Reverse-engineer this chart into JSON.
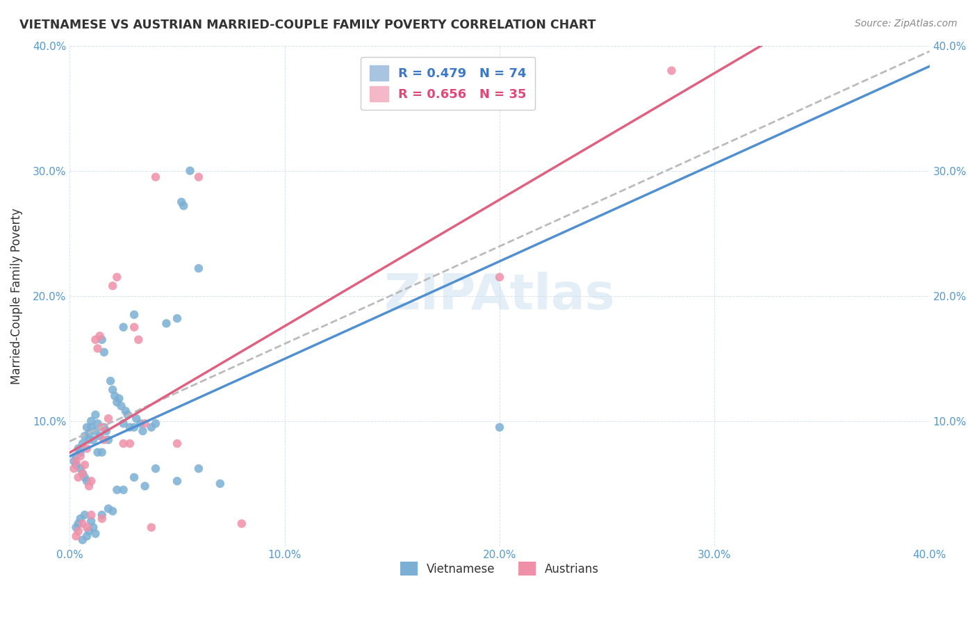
{
  "title": "VIETNAMESE VS AUSTRIAN MARRIED-COUPLE FAMILY POVERTY CORRELATION CHART",
  "source": "Source: ZipAtlas.com",
  "xlabel": "",
  "ylabel": "Married-Couple Family Poverty",
  "xlim": [
    0.0,
    0.4
  ],
  "ylim": [
    0.0,
    0.4
  ],
  "xtick_labels": [
    "0.0%",
    "10.0%",
    "20.0%",
    "30.0%",
    "40.0%"
  ],
  "ytick_labels": [
    "",
    "10.0%",
    "20.0%",
    "30.0%",
    "40.0%"
  ],
  "watermark": "ZIPAtlas",
  "legend_items": [
    {
      "label": "R = 0.479   N = 74",
      "color": "#a8c4e0",
      "text_color": "#3c78c8"
    },
    {
      "label": "R = 0.656   N = 35",
      "color": "#f4b8c8",
      "text_color": "#e04878"
    }
  ],
  "legend_labels": [
    "Vietnamese",
    "Austrians"
  ],
  "vietnamese_color": "#7bafd4",
  "austrian_color": "#f090a8",
  "trendline_viet_color": "#5090d0",
  "trendline_aust_color": "#e06080",
  "trendline_viet_dash_color": "#cccccc",
  "R_viet": 0.479,
  "N_viet": 74,
  "R_aust": 0.656,
  "N_aust": 35,
  "vietnamese_points": [
    [
      0.002,
      0.068
    ],
    [
      0.003,
      0.072
    ],
    [
      0.003,
      0.065
    ],
    [
      0.004,
      0.078
    ],
    [
      0.005,
      0.062
    ],
    [
      0.005,
      0.075
    ],
    [
      0.006,
      0.058
    ],
    [
      0.006,
      0.082
    ],
    [
      0.007,
      0.055
    ],
    [
      0.007,
      0.088
    ],
    [
      0.008,
      0.052
    ],
    [
      0.008,
      0.095
    ],
    [
      0.009,
      0.09
    ],
    [
      0.009,
      0.085
    ],
    [
      0.01,
      0.1
    ],
    [
      0.01,
      0.095
    ],
    [
      0.011,
      0.085
    ],
    [
      0.012,
      0.092
    ],
    [
      0.012,
      0.105
    ],
    [
      0.013,
      0.098
    ],
    [
      0.013,
      0.075
    ],
    [
      0.014,
      0.088
    ],
    [
      0.015,
      0.165
    ],
    [
      0.015,
      0.075
    ],
    [
      0.016,
      0.155
    ],
    [
      0.016,
      0.095
    ],
    [
      0.017,
      0.092
    ],
    [
      0.018,
      0.085
    ],
    [
      0.019,
      0.132
    ],
    [
      0.02,
      0.125
    ],
    [
      0.021,
      0.12
    ],
    [
      0.022,
      0.115
    ],
    [
      0.023,
      0.118
    ],
    [
      0.024,
      0.112
    ],
    [
      0.025,
      0.175
    ],
    [
      0.025,
      0.098
    ],
    [
      0.026,
      0.108
    ],
    [
      0.027,
      0.105
    ],
    [
      0.028,
      0.095
    ],
    [
      0.03,
      0.185
    ],
    [
      0.03,
      0.095
    ],
    [
      0.031,
      0.102
    ],
    [
      0.033,
      0.098
    ],
    [
      0.034,
      0.092
    ],
    [
      0.038,
      0.095
    ],
    [
      0.04,
      0.098
    ],
    [
      0.045,
      0.178
    ],
    [
      0.05,
      0.182
    ],
    [
      0.052,
      0.275
    ],
    [
      0.053,
      0.272
    ],
    [
      0.056,
      0.3
    ],
    [
      0.06,
      0.222
    ],
    [
      0.2,
      0.095
    ],
    [
      0.003,
      0.015
    ],
    [
      0.004,
      0.018
    ],
    [
      0.005,
      0.022
    ],
    [
      0.006,
      0.005
    ],
    [
      0.007,
      0.025
    ],
    [
      0.008,
      0.008
    ],
    [
      0.009,
      0.012
    ],
    [
      0.01,
      0.02
    ],
    [
      0.011,
      0.015
    ],
    [
      0.012,
      0.01
    ],
    [
      0.015,
      0.025
    ],
    [
      0.018,
      0.03
    ],
    [
      0.02,
      0.028
    ],
    [
      0.022,
      0.045
    ],
    [
      0.025,
      0.045
    ],
    [
      0.03,
      0.055
    ],
    [
      0.035,
      0.048
    ],
    [
      0.04,
      0.062
    ],
    [
      0.05,
      0.052
    ],
    [
      0.06,
      0.062
    ],
    [
      0.07,
      0.05
    ]
  ],
  "austrian_points": [
    [
      0.002,
      0.062
    ],
    [
      0.003,
      0.068
    ],
    [
      0.004,
      0.055
    ],
    [
      0.005,
      0.072
    ],
    [
      0.006,
      0.058
    ],
    [
      0.007,
      0.065
    ],
    [
      0.008,
      0.078
    ],
    [
      0.009,
      0.048
    ],
    [
      0.01,
      0.052
    ],
    [
      0.012,
      0.165
    ],
    [
      0.013,
      0.158
    ],
    [
      0.014,
      0.168
    ],
    [
      0.015,
      0.095
    ],
    [
      0.016,
      0.085
    ],
    [
      0.018,
      0.102
    ],
    [
      0.02,
      0.208
    ],
    [
      0.022,
      0.215
    ],
    [
      0.025,
      0.082
    ],
    [
      0.028,
      0.082
    ],
    [
      0.03,
      0.175
    ],
    [
      0.032,
      0.165
    ],
    [
      0.035,
      0.098
    ],
    [
      0.038,
      0.015
    ],
    [
      0.04,
      0.295
    ],
    [
      0.05,
      0.082
    ],
    [
      0.06,
      0.295
    ],
    [
      0.08,
      0.018
    ],
    [
      0.003,
      0.008
    ],
    [
      0.004,
      0.012
    ],
    [
      0.006,
      0.018
    ],
    [
      0.008,
      0.015
    ],
    [
      0.01,
      0.025
    ],
    [
      0.015,
      0.022
    ],
    [
      0.2,
      0.215
    ],
    [
      0.28,
      0.38
    ]
  ]
}
